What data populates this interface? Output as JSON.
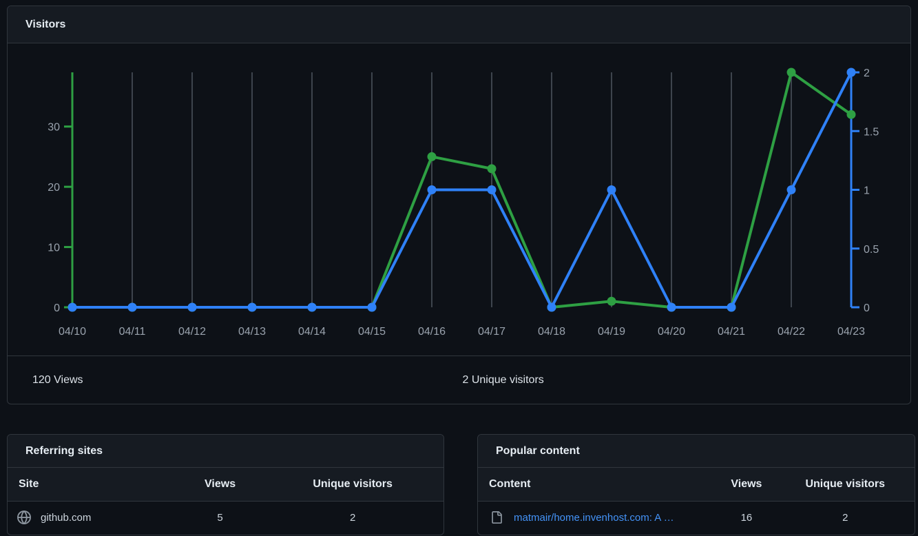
{
  "visitors_card": {
    "title": "Visitors",
    "summary": {
      "views_total": "120 Views",
      "unique_total": "2 Unique visitors"
    }
  },
  "chart_data": {
    "type": "line",
    "title": "Visitors",
    "categories": [
      "04/10",
      "04/11",
      "04/12",
      "04/13",
      "04/14",
      "04/15",
      "04/16",
      "04/17",
      "04/18",
      "04/19",
      "04/20",
      "04/21",
      "04/22",
      "04/23"
    ],
    "series": [
      {
        "name": "Views",
        "axis": "left",
        "color": "#2ea043",
        "values": [
          0,
          0,
          0,
          0,
          0,
          0,
          25,
          23,
          0,
          1,
          0,
          0,
          39,
          32
        ]
      },
      {
        "name": "Unique visitors",
        "axis": "right",
        "color": "#2f81f7",
        "values": [
          0,
          0,
          0,
          0,
          0,
          0,
          1,
          1,
          0,
          1,
          0,
          0,
          1,
          2
        ]
      }
    ],
    "y_left": {
      "ticks": [
        0,
        10,
        20,
        30
      ],
      "max": 39,
      "labels": [
        "0",
        "10",
        "20",
        "30"
      ]
    },
    "y_right": {
      "ticks": [
        0,
        0.5,
        1,
        1.5,
        2
      ],
      "max": 2,
      "labels": [
        "0",
        "0.5",
        "1",
        "1.5",
        "2"
      ]
    },
    "grid": "vertical",
    "legend": "none",
    "colors": {
      "grid": "#3d444d",
      "axis_label": "#9aa3ae"
    }
  },
  "referring_sites": {
    "title": "Referring sites",
    "columns": [
      "Site",
      "Views",
      "Unique visitors"
    ],
    "rows": [
      {
        "icon": "globe-icon",
        "site": "github.com",
        "views": "5",
        "unique": "2"
      }
    ]
  },
  "popular_content": {
    "title": "Popular content",
    "columns": [
      "Content",
      "Views",
      "Unique visitors"
    ],
    "rows": [
      {
        "icon": "file-icon",
        "content": "matmair/home.invenhost.com: A …",
        "views": "16",
        "unique": "2"
      }
    ]
  }
}
